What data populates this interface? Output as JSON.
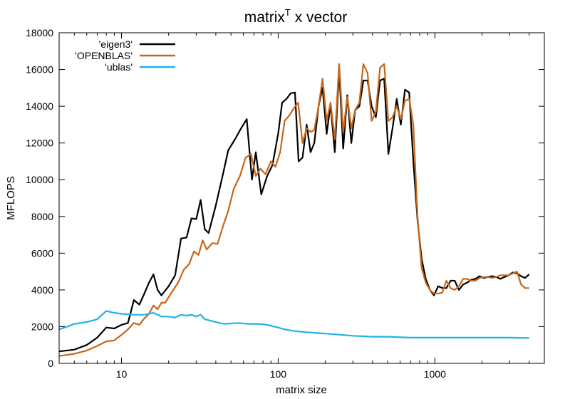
{
  "chart_data": {
    "type": "line",
    "title": "matrix",
    "title_superscript": "T",
    "title_suffix": " x vector",
    "xlabel": "matrix size",
    "ylabel": "MFLOPS",
    "xscale": "log",
    "xlim": [
      4,
      5000
    ],
    "ylim": [
      0,
      18000
    ],
    "grid": false,
    "legend_position": "top-left",
    "x_ticks": [
      {
        "value": 10,
        "label": "10"
      },
      {
        "value": 100,
        "label": "100"
      },
      {
        "value": 1000,
        "label": "1000"
      }
    ],
    "y_ticks": [
      {
        "value": 0,
        "label": "0"
      },
      {
        "value": 2000,
        "label": "2000"
      },
      {
        "value": 4000,
        "label": "4000"
      },
      {
        "value": 6000,
        "label": "6000"
      },
      {
        "value": 8000,
        "label": "8000"
      },
      {
        "value": 10000,
        "label": "10000"
      },
      {
        "value": 12000,
        "label": "12000"
      },
      {
        "value": 14000,
        "label": "14000"
      },
      {
        "value": 16000,
        "label": "16000"
      },
      {
        "value": 18000,
        "label": "18000"
      }
    ],
    "series": [
      {
        "name": "'eigen3'",
        "color": "#000000",
        "points": [
          [
            4,
            650
          ],
          [
            5,
            750
          ],
          [
            6,
            1000
          ],
          [
            7,
            1400
          ],
          [
            8,
            1950
          ],
          [
            9,
            1900
          ],
          [
            10,
            2100
          ],
          [
            11,
            2200
          ],
          [
            12,
            3450
          ],
          [
            13,
            3200
          ],
          [
            14,
            3800
          ],
          [
            15,
            4400
          ],
          [
            16,
            4850
          ],
          [
            17,
            4000
          ],
          [
            18,
            3700
          ],
          [
            20,
            4200
          ],
          [
            22,
            4800
          ],
          [
            24,
            6800
          ],
          [
            26,
            6850
          ],
          [
            28,
            7900
          ],
          [
            30,
            7850
          ],
          [
            32,
            8900
          ],
          [
            34,
            7300
          ],
          [
            36,
            7100
          ],
          [
            40,
            8600
          ],
          [
            45,
            10500
          ],
          [
            48,
            11600
          ],
          [
            53,
            12200
          ],
          [
            58,
            12800
          ],
          [
            63,
            13300
          ],
          [
            68,
            10000
          ],
          [
            72,
            11500
          ],
          [
            78,
            9200
          ],
          [
            85,
            10200
          ],
          [
            92,
            10800
          ],
          [
            100,
            12500
          ],
          [
            106,
            14200
          ],
          [
            113,
            14400
          ],
          [
            120,
            14700
          ],
          [
            128,
            14750
          ],
          [
            135,
            11000
          ],
          [
            143,
            11200
          ],
          [
            152,
            13000
          ],
          [
            161,
            11500
          ],
          [
            170,
            12000
          ],
          [
            181,
            14000
          ],
          [
            192,
            15000
          ],
          [
            204,
            12500
          ],
          [
            216,
            14100
          ],
          [
            230,
            11500
          ],
          [
            245,
            16000
          ],
          [
            260,
            11700
          ],
          [
            276,
            14600
          ],
          [
            293,
            12000
          ],
          [
            310,
            13800
          ],
          [
            330,
            14000
          ],
          [
            350,
            15400
          ],
          [
            372,
            15400
          ],
          [
            395,
            14000
          ],
          [
            420,
            13400
          ],
          [
            447,
            15400
          ],
          [
            475,
            15500
          ],
          [
            505,
            11400
          ],
          [
            537,
            12800
          ],
          [
            571,
            14400
          ],
          [
            607,
            13000
          ],
          [
            645,
            14900
          ],
          [
            686,
            14750
          ],
          [
            729,
            11000
          ],
          [
            775,
            7800
          ],
          [
            823,
            5700
          ],
          [
            875,
            4600
          ],
          [
            930,
            4000
          ],
          [
            988,
            3700
          ],
          [
            1050,
            4200
          ],
          [
            1115,
            4100
          ],
          [
            1185,
            4100
          ],
          [
            1260,
            4500
          ],
          [
            1340,
            4500
          ],
          [
            1425,
            4000
          ],
          [
            1515,
            4300
          ],
          [
            1610,
            4400
          ],
          [
            1710,
            4550
          ],
          [
            1815,
            4600
          ],
          [
            1930,
            4750
          ],
          [
            2050,
            4650
          ],
          [
            2180,
            4700
          ],
          [
            2320,
            4750
          ],
          [
            2465,
            4700
          ],
          [
            2620,
            4600
          ],
          [
            2780,
            4700
          ],
          [
            2960,
            4800
          ],
          [
            3140,
            4950
          ],
          [
            3340,
            4900
          ],
          [
            3550,
            4750
          ],
          [
            3770,
            4650
          ],
          [
            4000,
            4850
          ]
        ]
      },
      {
        "name": "'OPENBLAS'",
        "color": "#c8661a",
        "points": [
          [
            4,
            400
          ],
          [
            5,
            520
          ],
          [
            6,
            700
          ],
          [
            7,
            950
          ],
          [
            8,
            1200
          ],
          [
            9,
            1250
          ],
          [
            10,
            1550
          ],
          [
            11,
            1850
          ],
          [
            12,
            2200
          ],
          [
            13,
            2100
          ],
          [
            14,
            2450
          ],
          [
            15,
            2700
          ],
          [
            16,
            3150
          ],
          [
            17,
            2950
          ],
          [
            18,
            3300
          ],
          [
            19,
            3300
          ],
          [
            21,
            3900
          ],
          [
            23,
            4400
          ],
          [
            25,
            5100
          ],
          [
            27,
            5400
          ],
          [
            29,
            6100
          ],
          [
            31,
            5900
          ],
          [
            33,
            6700
          ],
          [
            35,
            6200
          ],
          [
            38,
            6550
          ],
          [
            41,
            6500
          ],
          [
            45,
            7600
          ],
          [
            48,
            8300
          ],
          [
            52,
            9500
          ],
          [
            57,
            10200
          ],
          [
            62,
            11200
          ],
          [
            67,
            11400
          ],
          [
            72,
            10200
          ],
          [
            77,
            10600
          ],
          [
            83,
            10300
          ],
          [
            90,
            11000
          ],
          [
            96,
            10700
          ],
          [
            103,
            11500
          ],
          [
            110,
            13200
          ],
          [
            118,
            13500
          ],
          [
            126,
            13900
          ],
          [
            134,
            14200
          ],
          [
            143,
            12000
          ],
          [
            152,
            12800
          ],
          [
            161,
            12600
          ],
          [
            170,
            12700
          ],
          [
            181,
            14000
          ],
          [
            192,
            15500
          ],
          [
            204,
            13200
          ],
          [
            216,
            14200
          ],
          [
            230,
            12200
          ],
          [
            245,
            16300
          ],
          [
            260,
            12600
          ],
          [
            276,
            14500
          ],
          [
            293,
            12800
          ],
          [
            310,
            13800
          ],
          [
            330,
            14200
          ],
          [
            350,
            16300
          ],
          [
            372,
            15800
          ],
          [
            395,
            13200
          ],
          [
            420,
            13700
          ],
          [
            447,
            16100
          ],
          [
            475,
            16300
          ],
          [
            505,
            13200
          ],
          [
            537,
            13400
          ],
          [
            571,
            14000
          ],
          [
            607,
            13300
          ],
          [
            645,
            14300
          ],
          [
            686,
            14400
          ],
          [
            729,
            13000
          ],
          [
            775,
            8000
          ],
          [
            823,
            5200
          ],
          [
            875,
            4400
          ],
          [
            930,
            4000
          ],
          [
            988,
            3800
          ],
          [
            1050,
            3800
          ],
          [
            1115,
            3850
          ],
          [
            1185,
            4500
          ],
          [
            1260,
            4100
          ],
          [
            1340,
            4000
          ],
          [
            1425,
            4200
          ],
          [
            1515,
            4600
          ],
          [
            1610,
            4600
          ],
          [
            1710,
            4500
          ],
          [
            1815,
            4500
          ],
          [
            1930,
            4650
          ],
          [
            2050,
            4700
          ],
          [
            2180,
            4700
          ],
          [
            2320,
            4650
          ],
          [
            2465,
            4700
          ],
          [
            2620,
            4800
          ],
          [
            2780,
            4800
          ],
          [
            2960,
            4800
          ],
          [
            3140,
            4900
          ],
          [
            3340,
            5000
          ],
          [
            3550,
            4300
          ],
          [
            3770,
            4100
          ],
          [
            4000,
            4100
          ]
        ]
      },
      {
        "name": "'ublas'",
        "color": "#1eb4e6",
        "points": [
          [
            4,
            1850
          ],
          [
            4.5,
            2000
          ],
          [
            5,
            2150
          ],
          [
            6,
            2250
          ],
          [
            7,
            2400
          ],
          [
            8,
            2850
          ],
          [
            9,
            2750
          ],
          [
            10,
            2700
          ],
          [
            12,
            2650
          ],
          [
            14,
            2650
          ],
          [
            16,
            2750
          ],
          [
            17,
            2650
          ],
          [
            18,
            2550
          ],
          [
            20,
            2550
          ],
          [
            22,
            2500
          ],
          [
            24,
            2650
          ],
          [
            26,
            2600
          ],
          [
            28,
            2650
          ],
          [
            30,
            2550
          ],
          [
            32,
            2650
          ],
          [
            34,
            2400
          ],
          [
            38,
            2300
          ],
          [
            42,
            2200
          ],
          [
            46,
            2150
          ],
          [
            55,
            2200
          ],
          [
            65,
            2150
          ],
          [
            75,
            2150
          ],
          [
            85,
            2100
          ],
          [
            100,
            1950
          ],
          [
            110,
            1850
          ],
          [
            130,
            1750
          ],
          [
            150,
            1700
          ],
          [
            180,
            1650
          ],
          [
            220,
            1600
          ],
          [
            300,
            1500
          ],
          [
            400,
            1450
          ],
          [
            500,
            1450
          ],
          [
            700,
            1400
          ],
          [
            1000,
            1400
          ],
          [
            1500,
            1400
          ],
          [
            2000,
            1400
          ],
          [
            3000,
            1400
          ],
          [
            4000,
            1380
          ]
        ]
      }
    ]
  }
}
